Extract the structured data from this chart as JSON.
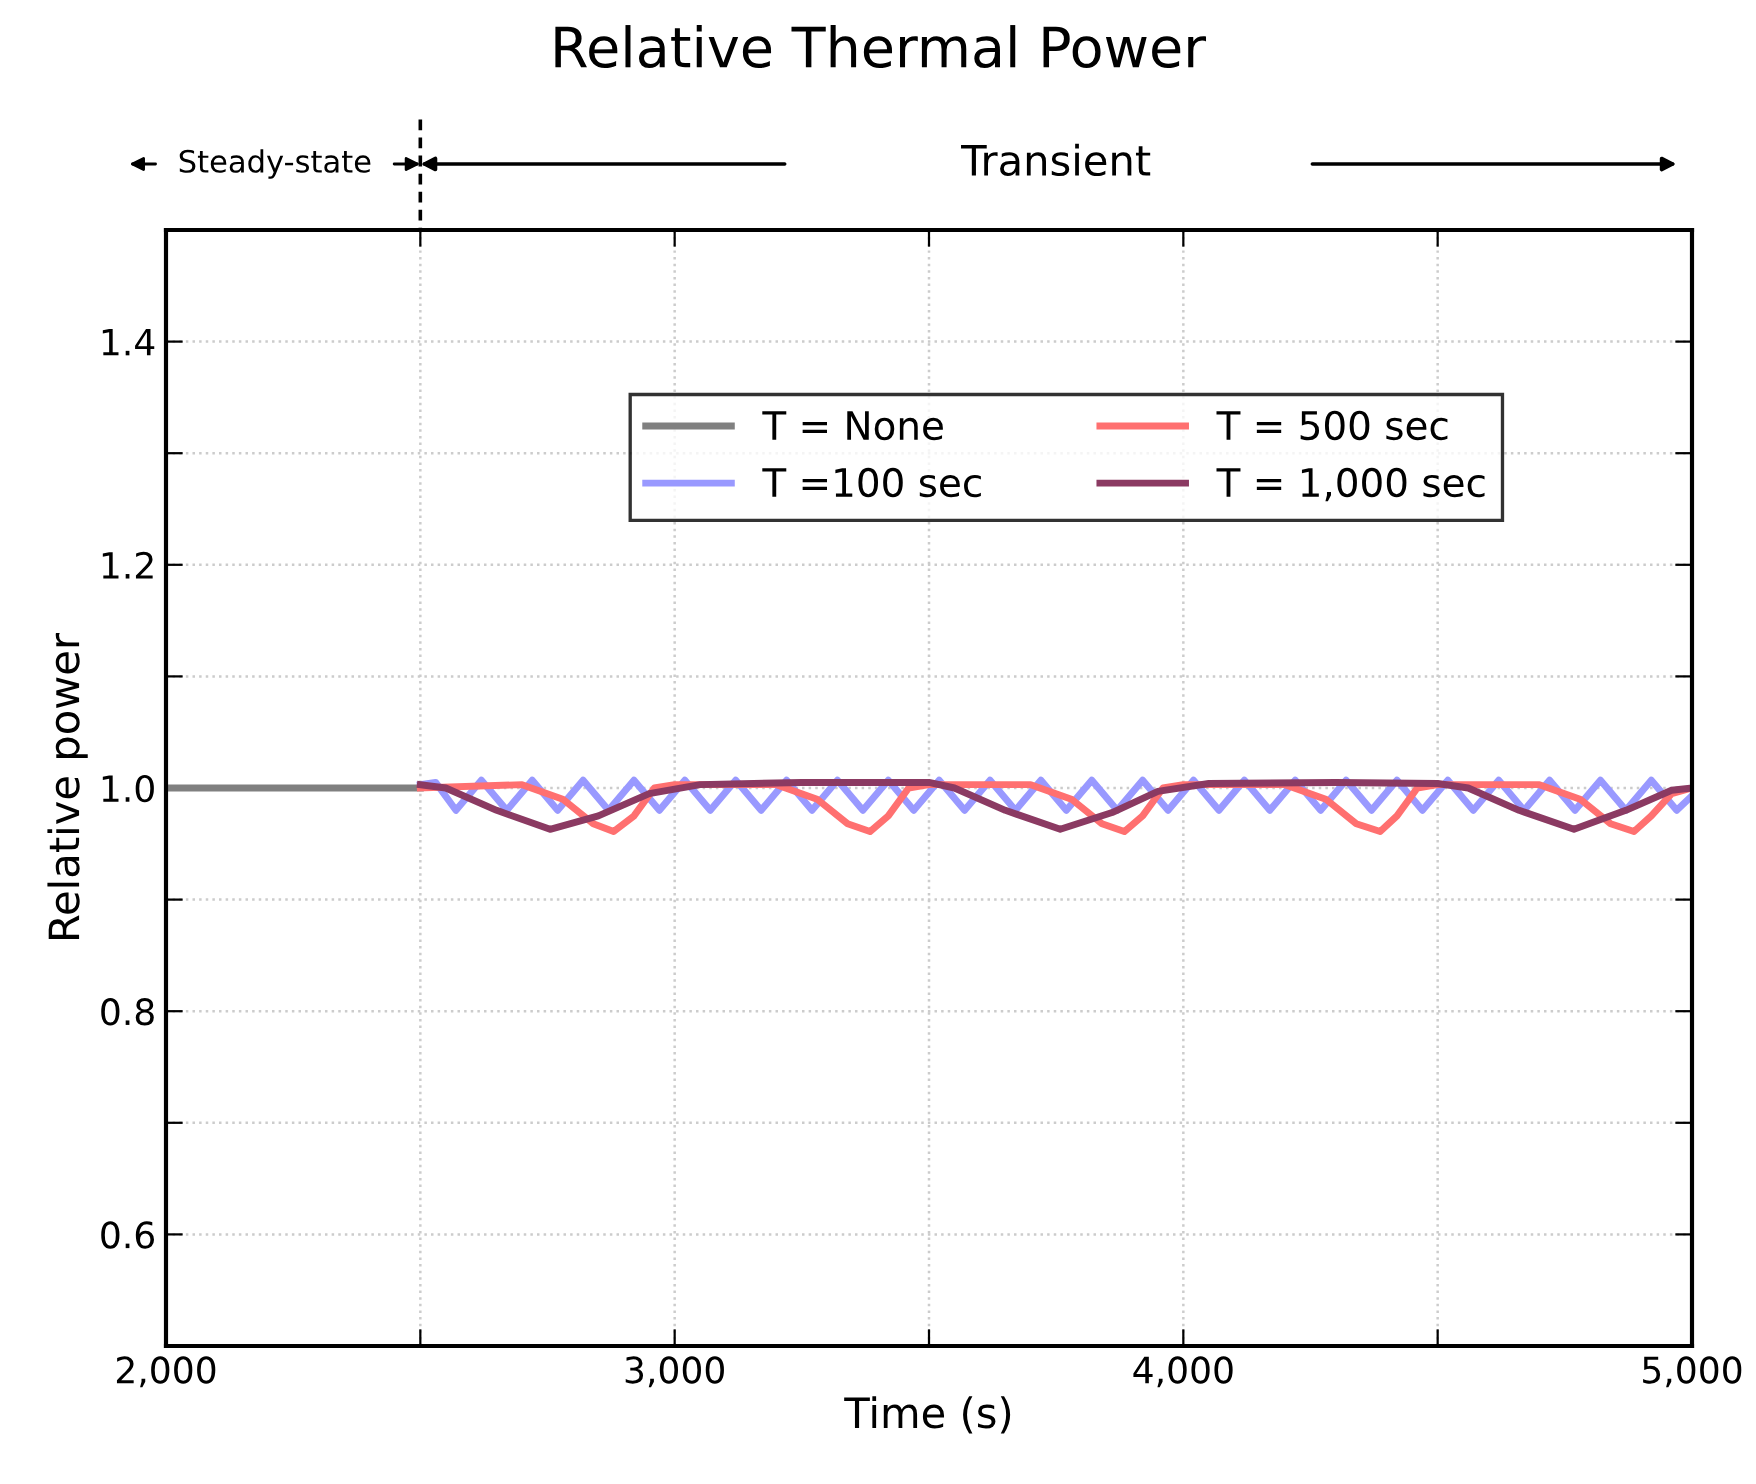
{
  "chart_data": {
    "type": "line",
    "title": "Relative Thermal Power",
    "xlabel": "Time (s)",
    "ylabel": "Relative power",
    "annotations": [
      "Steady-state",
      "Transient"
    ],
    "xlim": [
      2000,
      5000
    ],
    "ylim": [
      0.5,
      1.5
    ],
    "xticks": [
      {
        "value": 2000,
        "label": "2,000"
      },
      {
        "value": 2500,
        "label": null
      },
      {
        "value": 3000,
        "label": "3,000"
      },
      {
        "value": 3500,
        "label": null
      },
      {
        "value": 4000,
        "label": "4,000"
      },
      {
        "value": 4500,
        "label": null
      },
      {
        "value": 5000,
        "label": "5,000"
      }
    ],
    "yticks": [
      {
        "value": 0.6,
        "label": "0.6"
      },
      {
        "value": 0.7,
        "label": null
      },
      {
        "value": 0.8,
        "label": "0.8"
      },
      {
        "value": 0.9,
        "label": null
      },
      {
        "value": 1.0,
        "label": "1.0"
      },
      {
        "value": 1.1,
        "label": null
      },
      {
        "value": 1.2,
        "label": "1.2"
      },
      {
        "value": 1.3,
        "label": null
      },
      {
        "value": 1.4,
        "label": "1.4"
      }
    ],
    "grid": true,
    "legend": "top",
    "marker": "none",
    "line_style": "solid",
    "series": [
      {
        "name": "T = None",
        "color": "#808080",
        "x": [
          2000,
          2500
        ],
        "values": [
          1.0,
          1.0
        ]
      },
      {
        "name": "T =100 sec",
        "color": "#9999ff",
        "x": [
          2500,
          2530,
          2570,
          2620,
          2670,
          2720,
          2770,
          2820,
          2870,
          2920,
          2970,
          3020,
          3070,
          3120,
          3170,
          3220,
          3270,
          3320,
          3370,
          3420,
          3470,
          3520,
          3570,
          3620,
          3670,
          3720,
          3770,
          3820,
          3870,
          3920,
          3970,
          4020,
          4070,
          4120,
          4170,
          4220,
          4270,
          4320,
          4370,
          4420,
          4470,
          4520,
          4570,
          4620,
          4670,
          4720,
          4770,
          4820,
          4870,
          4920,
          4970,
          5000
        ],
        "values": [
          1.003,
          1.005,
          0.98,
          1.007,
          0.98,
          1.007,
          0.98,
          1.007,
          0.98,
          1.007,
          0.98,
          1.007,
          0.98,
          1.007,
          0.98,
          1.007,
          0.98,
          1.007,
          0.98,
          1.007,
          0.98,
          1.007,
          0.98,
          1.007,
          0.98,
          1.007,
          0.98,
          1.007,
          0.98,
          1.007,
          0.98,
          1.007,
          0.98,
          1.007,
          0.98,
          1.007,
          0.98,
          1.007,
          0.98,
          1.007,
          0.98,
          1.007,
          0.98,
          1.007,
          0.98,
          1.007,
          0.98,
          1.007,
          0.98,
          1.007,
          0.98,
          0.993
        ]
      },
      {
        "name": "T = 500 sec",
        "color": "#ff7070",
        "x": [
          2500,
          2700,
          2780,
          2840,
          2880,
          2920,
          2960,
          3000,
          3200,
          3280,
          3340,
          3384,
          3420,
          3460,
          3500,
          3700,
          3780,
          3840,
          3884,
          3920,
          3960,
          4000,
          4200,
          4280,
          4340,
          4387,
          4420,
          4460,
          4500,
          4700,
          4780,
          4840,
          4886,
          4920,
          4960,
          5000
        ],
        "values": [
          1.0,
          1.003,
          0.99,
          0.968,
          0.961,
          0.975,
          1.0,
          1.003,
          1.003,
          0.99,
          0.968,
          0.961,
          0.975,
          1.0,
          1.003,
          1.003,
          0.99,
          0.968,
          0.961,
          0.975,
          1.0,
          1.003,
          1.003,
          0.99,
          0.968,
          0.961,
          0.975,
          1.0,
          1.003,
          1.003,
          0.99,
          0.968,
          0.961,
          0.975,
          0.995,
          1.0
        ]
      },
      {
        "name": "T = 1,000 sec",
        "color": "#8b3a62",
        "x": [
          2500,
          2550,
          2650,
          2755,
          2850,
          2950,
          3050,
          3250,
          3500,
          3550,
          3650,
          3758,
          3860,
          3950,
          4050,
          4300,
          4500,
          4560,
          4660,
          4768,
          4870,
          4960,
          5000
        ],
        "values": [
          1.003,
          1.0,
          0.98,
          0.963,
          0.975,
          0.995,
          1.003,
          1.005,
          1.005,
          1.0,
          0.98,
          0.963,
          0.978,
          0.997,
          1.004,
          1.005,
          1.004,
          1.0,
          0.98,
          0.963,
          0.98,
          0.998,
          1.0
        ]
      }
    ]
  }
}
